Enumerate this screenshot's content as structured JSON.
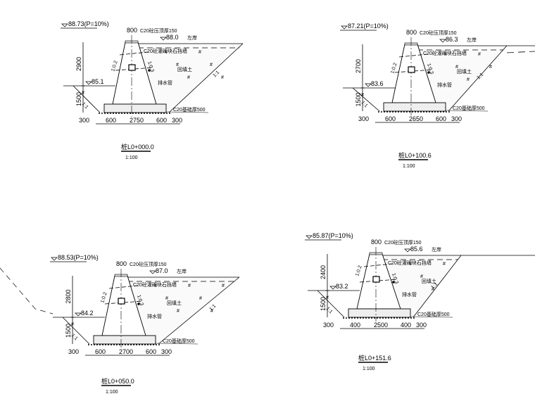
{
  "sections": [
    {
      "title": "桩L0+000.0",
      "scale": "1:100",
      "flood_level": "88.73(P=10%)",
      "top_level": "88.0",
      "bank": "左岸",
      "ground_level": "85.1",
      "height_upper": "2900",
      "height_lower": "1500",
      "dims": [
        "300",
        "600",
        "2750",
        "600",
        "300"
      ],
      "labels": {
        "cap": "C20砼压顶厚150",
        "wall": "C20砼灌砌块石挡墙",
        "backfill": "回填土",
        "drain": "排水管",
        "base": "C20基础厚500",
        "slope_front": "1:0.2",
        "slope_back": "1:0.3",
        "slope_cut": "1:1",
        "slope_fill": "1:1"
      }
    },
    {
      "title": "桩L0+100.6",
      "scale": "1:100",
      "flood_level": "87.21(P=10%)",
      "top_level": "86.3",
      "bank": "左岸",
      "ground_level": "83.6",
      "height_upper": "2700",
      "height_lower": "1500",
      "dims": [
        "300",
        "600",
        "2650",
        "600",
        "300"
      ],
      "labels": {
        "cap": "C20砼压顶厚150",
        "wall": "C20砼灌砌块石挡墙",
        "backfill": "回填土",
        "drain": "排水管",
        "base": "C20基础厚500",
        "slope_front": "1:0.2",
        "slope_back": "1:0.3",
        "slope_cut": "1:1",
        "slope_fill": "1:1"
      }
    },
    {
      "title": "桩L0+050.0",
      "scale": "1:100",
      "flood_level": "88.53(P=10%)",
      "top_level": "87.0",
      "bank": "左岸",
      "ground_level": "84.2",
      "height_upper": "2800",
      "height_lower": "1500",
      "dims": [
        "300",
        "600",
        "2700",
        "600",
        "300"
      ],
      "labels": {
        "cap": "C20砼压顶厚150",
        "wall": "C20砼灌砌块石挡墙",
        "backfill": "回填土",
        "drain": "排水管",
        "base": "C20基础厚500",
        "slope_front": "1:0.2",
        "slope_back": "1:0.3",
        "slope_cut": "1:1",
        "slope_fill": "1:1"
      }
    },
    {
      "title": "桩L0+151.6",
      "scale": "1:100",
      "flood_level": "85.87(P=10%)",
      "top_level": "85.6",
      "bank": "左岸",
      "ground_level": "83.2",
      "height_upper": "2400",
      "height_lower": "1500",
      "dims": [
        "300",
        "400",
        "2500",
        "400",
        "300"
      ],
      "labels": {
        "cap": "C20砼压顶厚150",
        "wall": "C20砼灌砌块石挡墙",
        "backfill": "回填土",
        "drain": "排水管",
        "base": "C20基础厚500",
        "slope_front": "1:0.2",
        "slope_back": "1:0.3",
        "slope_cut": "1:1",
        "slope_fill": "1:1"
      }
    }
  ]
}
